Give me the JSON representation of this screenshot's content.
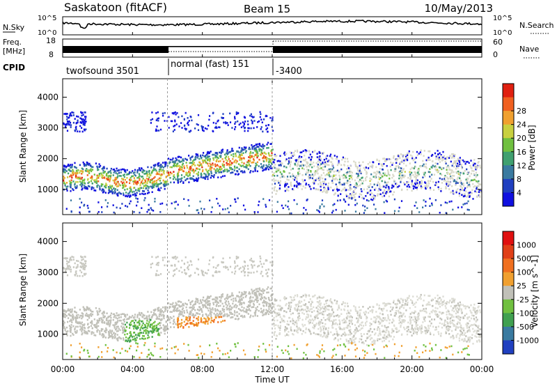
{
  "header": {
    "title": "Saskatoon (fitACF)",
    "beam": "Beam 15",
    "date": "10/May/2013"
  },
  "noise_panel": {
    "left_label": "N.Sky",
    "right_label": "N.Search",
    "ytick_top": "10^5",
    "ytick_bottom": "10^0"
  },
  "freq_panel": {
    "left_label_1": "Freq.",
    "left_label_2": "[MHz]",
    "right_label": "Nave",
    "ytick_left_top": "18",
    "ytick_left_bottom": "8",
    "ytick_right_top": "60",
    "ytick_right_bottom": "0"
  },
  "cpid": {
    "label": "CPID",
    "segments": [
      {
        "name": "twofsound 3501",
        "start_hour": 0,
        "end_hour": 6
      },
      {
        "name": "normal (fast) 151",
        "start_hour": 6,
        "end_hour": 12
      },
      {
        "name": "-3400",
        "start_hour": 12,
        "end_hour": 24
      }
    ]
  },
  "chart_data": [
    {
      "type": "heatmap",
      "name": "power",
      "ylabel": "Slant Range [km]",
      "xlabel": "Time UT",
      "xlim": [
        0,
        24
      ],
      "ylim": [
        180,
        4600
      ],
      "yticks": [
        1000,
        2000,
        3000,
        4000
      ],
      "xticks": [
        "00:00",
        "04:00",
        "08:00",
        "12:00",
        "16:00",
        "20:00",
        "00:00"
      ],
      "colorbar": {
        "label": "Power [dB]",
        "ticks": [
          "4",
          "8",
          "12",
          "16",
          "20",
          "24",
          "28"
        ],
        "colors": [
          "#1010e0",
          "#2040c0",
          "#3a7aa0",
          "#40a070",
          "#70c040",
          "#c8d040",
          "#f0a030",
          "#f06020",
          "#e02010"
        ]
      }
    },
    {
      "type": "heatmap",
      "name": "velocity",
      "ylabel": "Slant Range [km]",
      "xlabel": "Time UT",
      "xlim": [
        0,
        24
      ],
      "ylim": [
        180,
        4600
      ],
      "yticks": [
        1000,
        2000,
        3000,
        4000
      ],
      "xticks": [
        "00:00",
        "04:00",
        "08:00",
        "12:00",
        "16:00",
        "20:00",
        "00:00"
      ],
      "colorbar": {
        "label": "Velocity [m s^-1]",
        "ticks": [
          "1000",
          "500",
          "100",
          "25",
          "-25",
          "-100",
          "-500",
          "-1000"
        ],
        "colors": [
          "#2040c0",
          "#3a7aa0",
          "#40a050",
          "#70c040",
          "#c0c0b8",
          "#f0a030",
          "#f07020",
          "#e04018",
          "#e01010"
        ]
      }
    }
  ],
  "x_axis_title": "Time UT"
}
